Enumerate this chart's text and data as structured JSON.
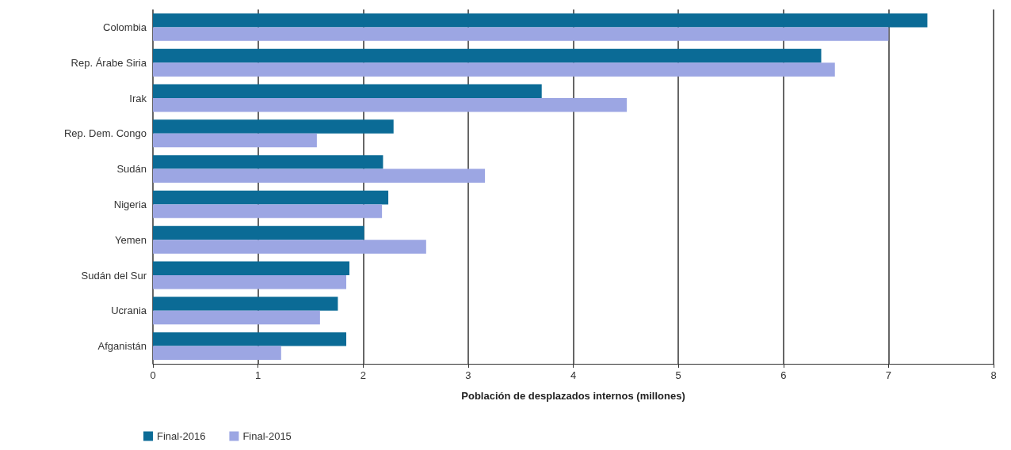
{
  "chart_data": {
    "type": "bar",
    "orientation": "horizontal",
    "xlabel": "Población de desplazados internos (millones)",
    "categories": [
      "Colombia",
      "Rep. Árabe Siria",
      "Irak",
      "Rep. Dem. Congo",
      "Sudán",
      "Nigeria",
      "Yemen",
      "Sudán del Sur",
      "Ucrania",
      "Afganistán"
    ],
    "series": [
      {
        "name": "Final-2016",
        "color": "#0b6b96",
        "values": [
          7.37,
          6.36,
          3.7,
          2.29,
          2.19,
          2.24,
          2.01,
          1.87,
          1.76,
          1.84
        ]
      },
      {
        "name": "Final-2015",
        "color": "#9ca6e3",
        "values": [
          7.0,
          6.49,
          4.51,
          1.56,
          3.16,
          2.18,
          2.6,
          1.84,
          1.59,
          1.22
        ]
      }
    ],
    "xlim": [
      0,
      8
    ],
    "xticks": [
      0,
      1,
      2,
      3,
      4,
      5,
      6,
      7,
      8
    ],
    "grid": "x",
    "legend": "bottom left"
  }
}
